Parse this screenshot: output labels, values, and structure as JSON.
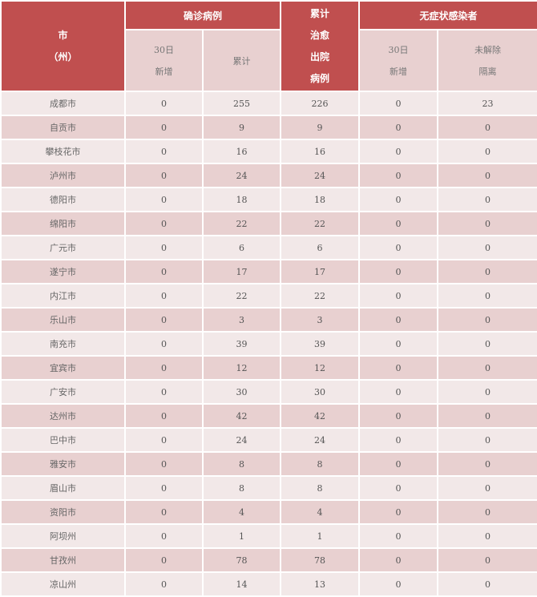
{
  "header": {
    "city": [
      "市",
      "（州）"
    ],
    "confirmed": "确诊病例",
    "confirmed_new": [
      "30日",
      "新增"
    ],
    "confirmed_total": "累计",
    "recovered": [
      "累计",
      "治愈",
      "出院",
      "病例"
    ],
    "asymptomatic": "无症状感染者",
    "asym_new": [
      "30日",
      "新增"
    ],
    "asym_unreleased": [
      "未解除",
      "隔离"
    ]
  },
  "colors": {
    "header": "#c04f4f",
    "subheader": "#e8d0d0",
    "row_light": "#f2e8e8",
    "row_dark": "#e8d0d0"
  },
  "rows": [
    [
      "成都市",
      "0",
      "255",
      "226",
      "0",
      "23"
    ],
    [
      "自贡市",
      "0",
      "9",
      "9",
      "0",
      "0"
    ],
    [
      "攀枝花市",
      "0",
      "16",
      "16",
      "0",
      "0"
    ],
    [
      "泸州市",
      "0",
      "24",
      "24",
      "0",
      "0"
    ],
    [
      "德阳市",
      "0",
      "18",
      "18",
      "0",
      "0"
    ],
    [
      "绵阳市",
      "0",
      "22",
      "22",
      "0",
      "0"
    ],
    [
      "广元市",
      "0",
      "6",
      "6",
      "0",
      "0"
    ],
    [
      "遂宁市",
      "0",
      "17",
      "17",
      "0",
      "0"
    ],
    [
      "内江市",
      "0",
      "22",
      "22",
      "0",
      "0"
    ],
    [
      "乐山市",
      "0",
      "3",
      "3",
      "0",
      "0"
    ],
    [
      "南充市",
      "0",
      "39",
      "39",
      "0",
      "0"
    ],
    [
      "宜宾市",
      "0",
      "12",
      "12",
      "0",
      "0"
    ],
    [
      "广安市",
      "0",
      "30",
      "30",
      "0",
      "0"
    ],
    [
      "达州市",
      "0",
      "42",
      "42",
      "0",
      "0"
    ],
    [
      "巴中市",
      "0",
      "24",
      "24",
      "0",
      "0"
    ],
    [
      "雅安市",
      "0",
      "8",
      "8",
      "0",
      "0"
    ],
    [
      "眉山市",
      "0",
      "8",
      "8",
      "0",
      "0"
    ],
    [
      "资阳市",
      "0",
      "4",
      "4",
      "0",
      "0"
    ],
    [
      "阿坝州",
      "0",
      "1",
      "1",
      "0",
      "0"
    ],
    [
      "甘孜州",
      "0",
      "78",
      "78",
      "0",
      "0"
    ],
    [
      "凉山州",
      "0",
      "14",
      "13",
      "0",
      "0"
    ]
  ]
}
